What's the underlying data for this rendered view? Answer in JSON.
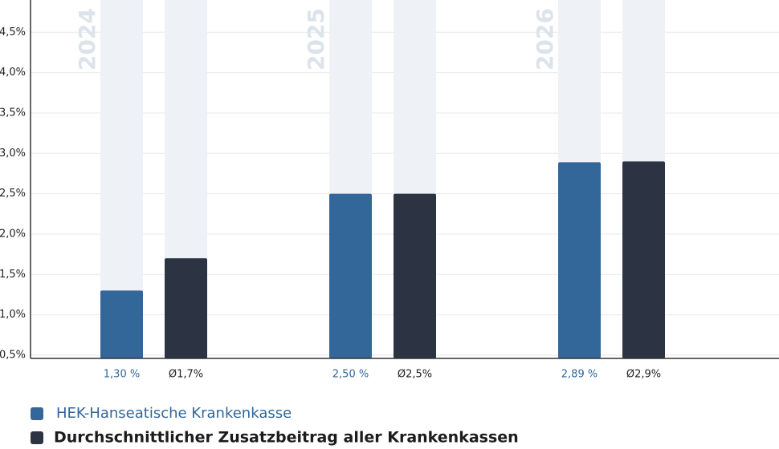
{
  "chart_data": {
    "type": "bar",
    "categories": [
      "2024",
      "2025",
      "2026"
    ],
    "series": [
      {
        "name": "HEK-Hanseatische Krankenkasse",
        "color": "#336699",
        "values": [
          1.3,
          2.5,
          2.89
        ],
        "value_labels": [
          "1,30 %",
          "2,50 %",
          "2,89 %"
        ]
      },
      {
        "name": "Durchschnittlicher Zusatzbeitrag aller Krankenkassen",
        "color": "#2c3444",
        "values": [
          1.7,
          2.5,
          2.9
        ],
        "value_labels": [
          "Ø1,7%",
          "Ø2,5%",
          "Ø2,9%"
        ]
      }
    ],
    "ylim": [
      0.46,
      4.9
    ],
    "yticks": [
      {
        "value": 0.5,
        "label": "0,5%"
      },
      {
        "value": 1.0,
        "label": "1,0%"
      },
      {
        "value": 1.5,
        "label": "1,5%"
      },
      {
        "value": 2.0,
        "label": "2,0%"
      },
      {
        "value": 2.5,
        "label": "2,5%"
      },
      {
        "value": 3.0,
        "label": "3,0%"
      },
      {
        "value": 3.5,
        "label": "3,5%"
      },
      {
        "value": 4.0,
        "label": "4,0%"
      },
      {
        "value": 4.5,
        "label": "4,5%"
      }
    ],
    "grid": true
  }
}
